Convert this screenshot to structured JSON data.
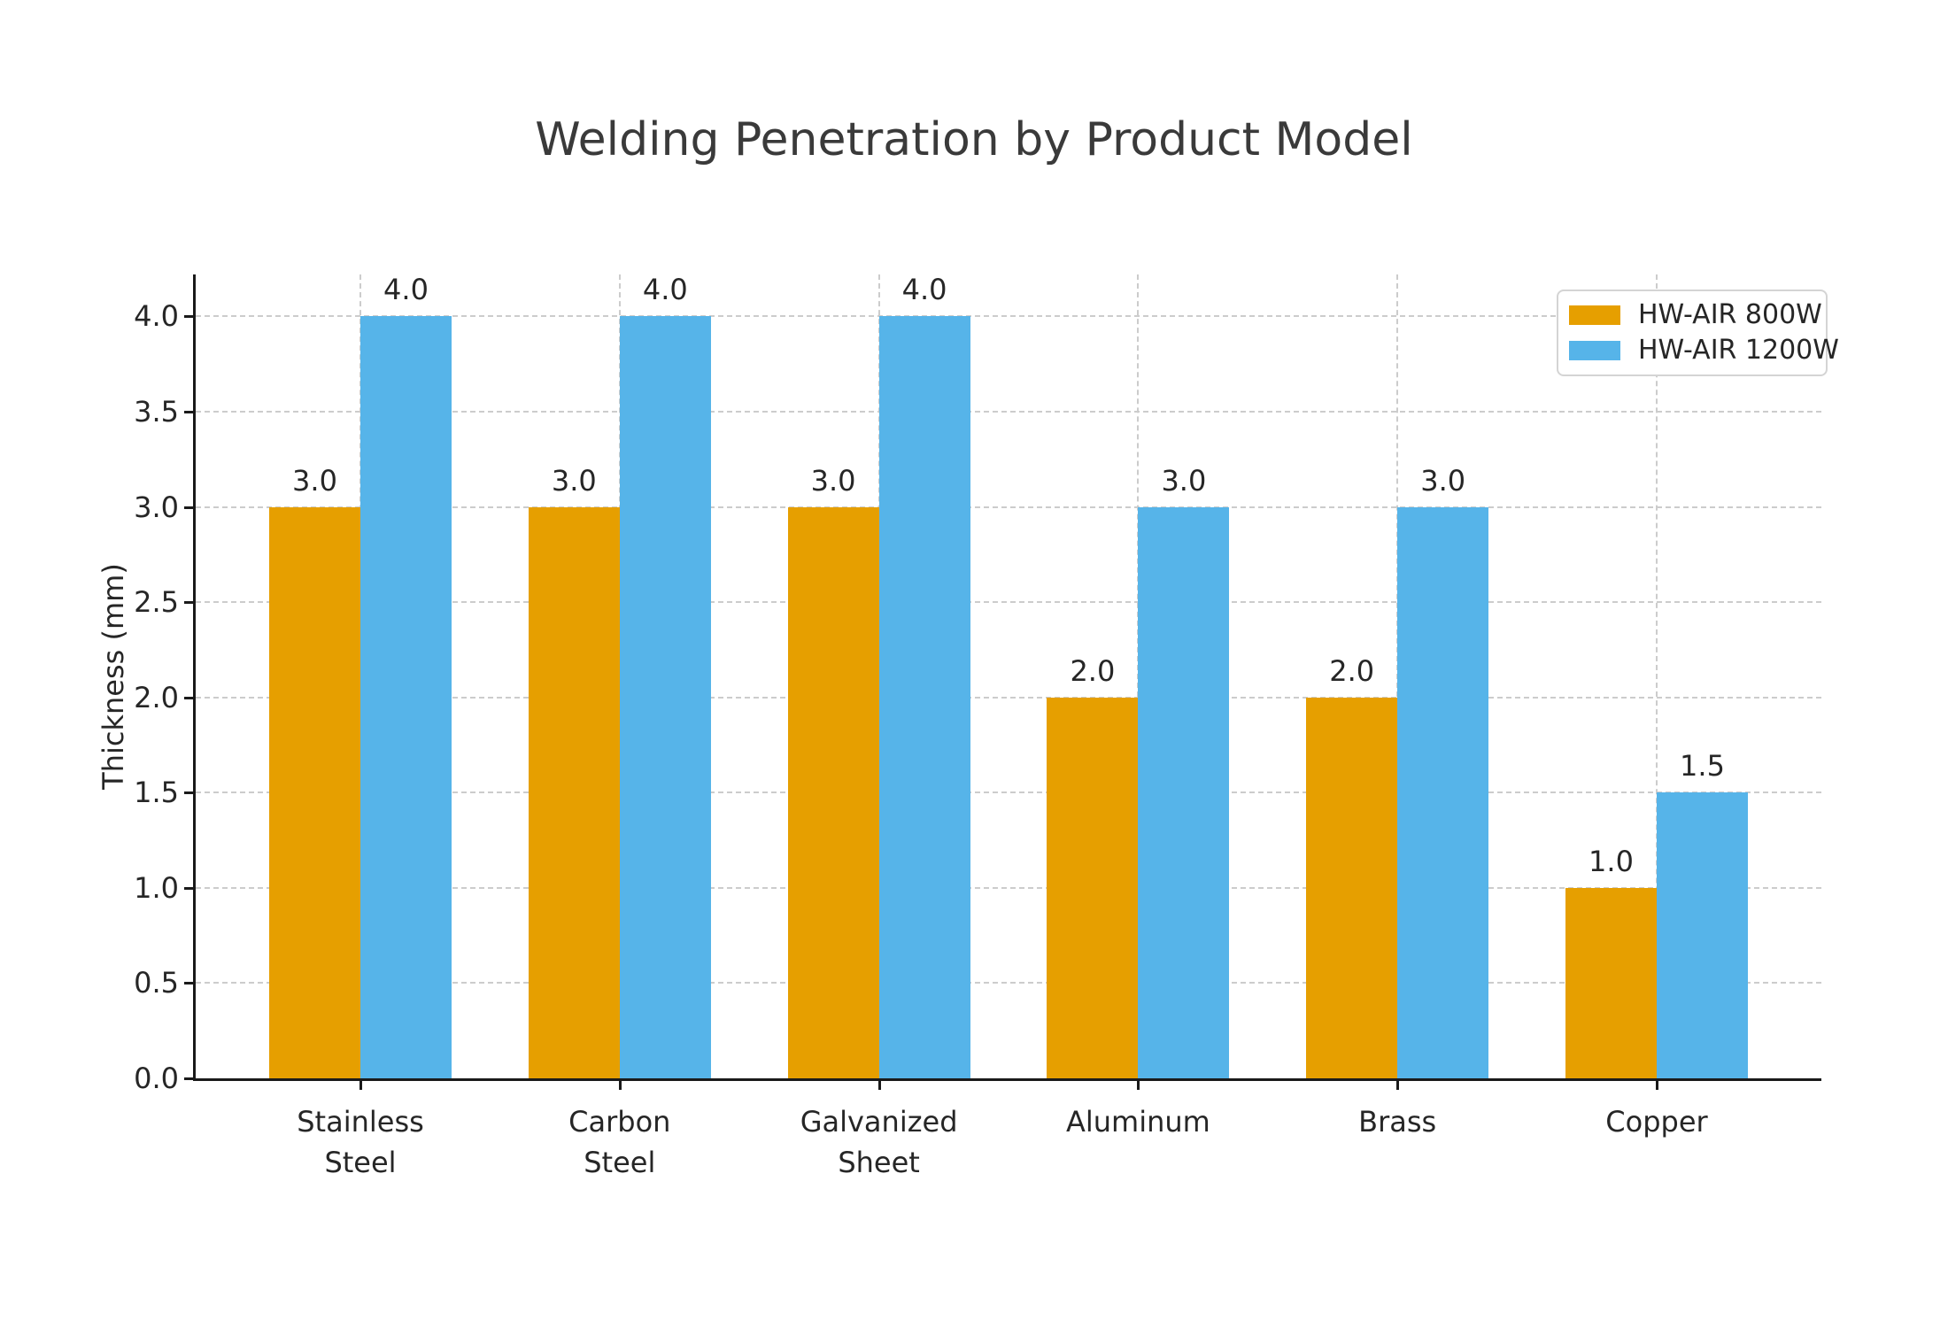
{
  "chart_data": {
    "type": "bar",
    "title": "Welding Penetration by Product Model",
    "xlabel": "",
    "ylabel": "Thickness (mm)",
    "categories": [
      "Stainless\nSteel",
      "Carbon\nSteel",
      "Galvanized\nSheet",
      "Aluminum",
      "Brass",
      "Copper"
    ],
    "series": [
      {
        "name": "HW-AIR 800W",
        "color": "#E69F00",
        "values": [
          3.0,
          3.0,
          3.0,
          2.0,
          2.0,
          1.0
        ]
      },
      {
        "name": "HW-AIR 1200W",
        "color": "#56B4E9",
        "values": [
          4.0,
          4.0,
          4.0,
          3.0,
          3.0,
          1.5
        ]
      }
    ],
    "ylim": [
      0,
      4.22
    ],
    "yticks": [
      0.0,
      0.5,
      1.0,
      1.5,
      2.0,
      2.5,
      3.0,
      3.5,
      4.0
    ],
    "bar_value_labels": true,
    "value_label_decimals": 1,
    "legend_position": "upper right",
    "grid": {
      "horizontal": true,
      "vertical": true,
      "line_style": "dashed"
    }
  },
  "colors": {
    "series_800w": "#E69F00",
    "series_1200w": "#56B4E9",
    "grid": "#cccccc",
    "axis": "#1a1a1a",
    "text": "#262626",
    "title_text": "#3a3a3a",
    "legend_border": "#d4d4d4",
    "background": "#ffffff"
  }
}
